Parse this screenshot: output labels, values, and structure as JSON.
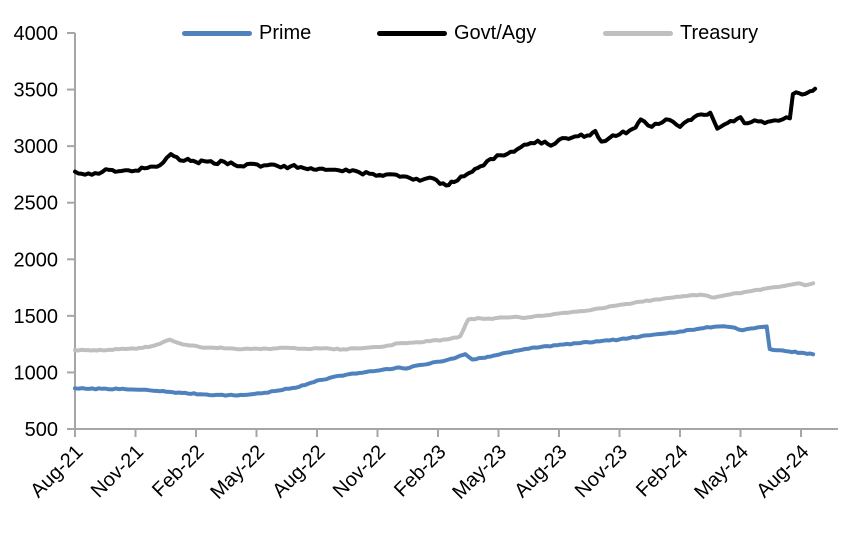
{
  "chart_data": {
    "type": "line",
    "title": "",
    "xlabel": "",
    "ylabel": "",
    "y_min": 500,
    "y_max": 4000,
    "y_step": 500,
    "y_tick_labels": [
      "500",
      "1000",
      "1500",
      "2000",
      "2500",
      "3000",
      "3500",
      "4000"
    ],
    "x_tick_labels": [
      "Aug-21",
      "Nov-21",
      "Feb-22",
      "May-22",
      "Aug-22",
      "Nov-22",
      "Feb-23",
      "May-23",
      "Aug-23",
      "Nov-23",
      "Feb-24",
      "May-24",
      "Aug-24"
    ],
    "x_unit": "months since Aug-2021 (ticks every 3 months)",
    "x_range_months": [
      0,
      36.7
    ],
    "grid": "off",
    "legend_position": "top",
    "background_color": "#FFFFFF",
    "axis_color": "#A6A6A6",
    "text_color": "#000000",
    "series": [
      {
        "name": "Prime",
        "color": "#4F81BD",
        "noise_amp": 5,
        "points": [
          [
            0,
            860
          ],
          [
            0.7,
            854
          ],
          [
            1.5,
            857
          ],
          [
            2.2,
            852
          ],
          [
            3,
            848
          ],
          [
            3.7,
            842
          ],
          [
            4.2,
            834
          ],
          [
            4.7,
            828
          ],
          [
            5.3,
            818
          ],
          [
            6.2,
            808
          ],
          [
            7,
            801
          ],
          [
            7.9,
            797
          ],
          [
            8.7,
            806
          ],
          [
            9.4,
            820
          ],
          [
            10.1,
            840
          ],
          [
            10.8,
            862
          ],
          [
            11.4,
            888
          ],
          [
            12,
            928
          ],
          [
            12.6,
            950
          ],
          [
            13.1,
            970
          ],
          [
            14.1,
            995
          ],
          [
            15.1,
            1018
          ],
          [
            15.8,
            1034
          ],
          [
            16.1,
            1044
          ],
          [
            16.4,
            1034
          ],
          [
            17.1,
            1066
          ],
          [
            18.1,
            1096
          ],
          [
            18.8,
            1124
          ],
          [
            19.1,
            1148
          ],
          [
            19.35,
            1162
          ],
          [
            19.7,
            1114
          ],
          [
            20.2,
            1128
          ],
          [
            20.6,
            1140
          ],
          [
            21.2,
            1168
          ],
          [
            21.8,
            1190
          ],
          [
            22.5,
            1210
          ],
          [
            23.1,
            1226
          ],
          [
            23.9,
            1240
          ],
          [
            24.9,
            1258
          ],
          [
            26,
            1274
          ],
          [
            26.5,
            1282
          ],
          [
            27,
            1292
          ],
          [
            27.5,
            1304
          ],
          [
            28,
            1316
          ],
          [
            28.5,
            1328
          ],
          [
            29,
            1340
          ],
          [
            29.5,
            1352
          ],
          [
            30,
            1362
          ],
          [
            30.5,
            1376
          ],
          [
            31,
            1388
          ],
          [
            31.7,
            1404
          ],
          [
            32.2,
            1408
          ],
          [
            32.7,
            1396
          ],
          [
            33.1,
            1372
          ],
          [
            33.5,
            1388
          ],
          [
            33.9,
            1400
          ],
          [
            34.3,
            1406
          ],
          [
            34.45,
            1206
          ],
          [
            34.8,
            1196
          ],
          [
            35.4,
            1186
          ],
          [
            36,
            1174
          ],
          [
            36.6,
            1160
          ]
        ]
      },
      {
        "name": "Govt/Agy",
        "color": "#000000",
        "noise_amp": 15,
        "points": [
          [
            0,
            2775
          ],
          [
            0.5,
            2748
          ],
          [
            1,
            2762
          ],
          [
            1.7,
            2790
          ],
          [
            2.3,
            2780
          ],
          [
            3,
            2784
          ],
          [
            3.6,
            2808
          ],
          [
            4.2,
            2830
          ],
          [
            4.55,
            2898
          ],
          [
            4.75,
            2930
          ],
          [
            5.2,
            2874
          ],
          [
            5.6,
            2888
          ],
          [
            6,
            2860
          ],
          [
            6.4,
            2868
          ],
          [
            6.9,
            2846
          ],
          [
            7.4,
            2862
          ],
          [
            7.9,
            2836
          ],
          [
            8.2,
            2824
          ],
          [
            8.7,
            2844
          ],
          [
            9.2,
            2818
          ],
          [
            9.7,
            2838
          ],
          [
            10.2,
            2812
          ],
          [
            10.7,
            2822
          ],
          [
            11.2,
            2816
          ],
          [
            11.7,
            2806
          ],
          [
            12.1,
            2800
          ],
          [
            12.6,
            2792
          ],
          [
            13.1,
            2786
          ],
          [
            13.6,
            2776
          ],
          [
            14.1,
            2768
          ],
          [
            14.6,
            2756
          ],
          [
            15.1,
            2746
          ],
          [
            15.6,
            2752
          ],
          [
            16.1,
            2730
          ],
          [
            16.6,
            2718
          ],
          [
            17.1,
            2694
          ],
          [
            17.6,
            2722
          ],
          [
            18.1,
            2666
          ],
          [
            18.4,
            2652
          ],
          [
            18.8,
            2682
          ],
          [
            19.3,
            2734
          ],
          [
            19.7,
            2774
          ],
          [
            20.1,
            2822
          ],
          [
            20.6,
            2886
          ],
          [
            21.1,
            2920
          ],
          [
            21.6,
            2950
          ],
          [
            22.1,
            2990
          ],
          [
            22.6,
            3028
          ],
          [
            23.3,
            3040
          ],
          [
            23.6,
            3004
          ],
          [
            24,
            3056
          ],
          [
            24.8,
            3086
          ],
          [
            25.4,
            3094
          ],
          [
            25.8,
            3134
          ],
          [
            26.1,
            3040
          ],
          [
            26.5,
            3072
          ],
          [
            27,
            3104
          ],
          [
            27.5,
            3138
          ],
          [
            27.8,
            3164
          ],
          [
            28.05,
            3236
          ],
          [
            28.6,
            3170
          ],
          [
            29.3,
            3236
          ],
          [
            30,
            3170
          ],
          [
            30.4,
            3228
          ],
          [
            30.7,
            3256
          ],
          [
            31.2,
            3276
          ],
          [
            31.5,
            3296
          ],
          [
            31.85,
            3154
          ],
          [
            32.2,
            3192
          ],
          [
            32.5,
            3222
          ],
          [
            33,
            3256
          ],
          [
            33.2,
            3202
          ],
          [
            33.7,
            3228
          ],
          [
            34.2,
            3204
          ],
          [
            34.7,
            3228
          ],
          [
            35.1,
            3238
          ],
          [
            35.45,
            3246
          ],
          [
            35.6,
            3460
          ],
          [
            35.9,
            3468
          ],
          [
            36.2,
            3462
          ],
          [
            36.45,
            3486
          ],
          [
            36.7,
            3508
          ]
        ]
      },
      {
        "name": "Treasury",
        "color": "#BFBFBF",
        "noise_amp": 5,
        "points": [
          [
            0,
            1197
          ],
          [
            0.8,
            1194
          ],
          [
            1.7,
            1200
          ],
          [
            2.5,
            1207
          ],
          [
            3.2,
            1216
          ],
          [
            3.8,
            1232
          ],
          [
            4.2,
            1252
          ],
          [
            4.7,
            1290
          ],
          [
            5.1,
            1262
          ],
          [
            5.5,
            1244
          ],
          [
            6.2,
            1224
          ],
          [
            6.9,
            1218
          ],
          [
            7.7,
            1212
          ],
          [
            8.4,
            1208
          ],
          [
            9.2,
            1206
          ],
          [
            10,
            1212
          ],
          [
            10.7,
            1216
          ],
          [
            11.4,
            1210
          ],
          [
            12,
            1214
          ],
          [
            12.7,
            1208
          ],
          [
            13.3,
            1204
          ],
          [
            14,
            1212
          ],
          [
            14.6,
            1220
          ],
          [
            15.3,
            1228
          ],
          [
            15.7,
            1240
          ],
          [
            15.9,
            1256
          ],
          [
            16.6,
            1263
          ],
          [
            17.6,
            1276
          ],
          [
            18.6,
            1296
          ],
          [
            19.1,
            1318
          ],
          [
            19.25,
            1372
          ],
          [
            19.5,
            1468
          ],
          [
            20.1,
            1478
          ],
          [
            20.7,
            1472
          ],
          [
            21.1,
            1486
          ],
          [
            21.8,
            1492
          ],
          [
            22.3,
            1481
          ],
          [
            23.1,
            1500
          ],
          [
            23.9,
            1519
          ],
          [
            24.9,
            1538
          ],
          [
            26,
            1566
          ],
          [
            27,
            1597
          ],
          [
            28,
            1624
          ],
          [
            29,
            1645
          ],
          [
            30,
            1668
          ],
          [
            31,
            1688
          ],
          [
            31.7,
            1661
          ],
          [
            32.5,
            1690
          ],
          [
            33.5,
            1718
          ],
          [
            34.3,
            1744
          ],
          [
            34.9,
            1756
          ],
          [
            35.5,
            1775
          ],
          [
            35.9,
            1788
          ],
          [
            36.2,
            1770
          ],
          [
            36.6,
            1788
          ]
        ]
      }
    ]
  }
}
